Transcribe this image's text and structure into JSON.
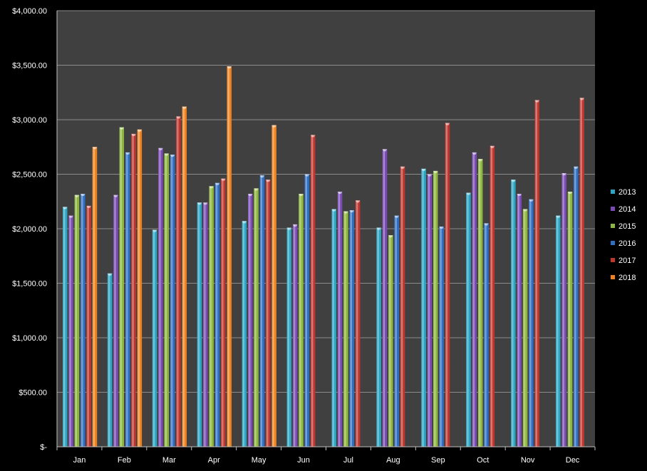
{
  "colors": {
    "background": "#000000",
    "plot_area": "#404040",
    "gridline": "#8c8c8c",
    "axis": "#bfbfbf",
    "text": "#ffffff"
  },
  "chart_data": {
    "type": "bar",
    "title": "",
    "xlabel": "",
    "ylabel": "",
    "ylim": [
      0,
      4000
    ],
    "yticks": [
      0,
      500,
      1000,
      1500,
      2000,
      2500,
      3000,
      3500,
      4000
    ],
    "ytick_labels": [
      "$-",
      "$500.00",
      "$1,000.00",
      "$1,500.00",
      "$2,000.00",
      "$2,500.00",
      "$3,000.00",
      "$3,500.00",
      "$4,000.00"
    ],
    "categories": [
      "Jan",
      "Feb",
      "Mar",
      "Apr",
      "May",
      "Jun",
      "Jul",
      "Aug",
      "Sep",
      "Oct",
      "Nov",
      "Dec"
    ],
    "grid": "horizontal",
    "legend_position": "right",
    "series": [
      {
        "name": "2013",
        "color": "#2aa5c3",
        "values": [
          2200,
          1590,
          1990,
          2240,
          2070,
          2010,
          2180,
          2010,
          2550,
          2330,
          2450,
          2120
        ]
      },
      {
        "name": "2014",
        "color": "#7b4bb5",
        "values": [
          2120,
          2310,
          2740,
          2240,
          2320,
          2040,
          2340,
          2730,
          2500,
          2700,
          2320,
          2510
        ]
      },
      {
        "name": "2015",
        "color": "#8db63c",
        "values": [
          2310,
          2930,
          2690,
          2390,
          2370,
          2320,
          2160,
          1940,
          2530,
          2640,
          2180,
          2340
        ]
      },
      {
        "name": "2016",
        "color": "#2e6fc4",
        "values": [
          2320,
          2700,
          2680,
          2420,
          2490,
          2500,
          2170,
          2120,
          2020,
          2050,
          2270,
          2570
        ]
      },
      {
        "name": "2017",
        "color": "#c0352e",
        "values": [
          2210,
          2870,
          3030,
          2460,
          2450,
          2860,
          2260,
          2570,
          2970,
          2760,
          3180,
          3200
        ]
      },
      {
        "name": "2018",
        "color": "#f0821e",
        "values": [
          2750,
          2910,
          3120,
          3490,
          2950,
          null,
          null,
          null,
          null,
          null,
          null,
          null
        ]
      }
    ]
  }
}
